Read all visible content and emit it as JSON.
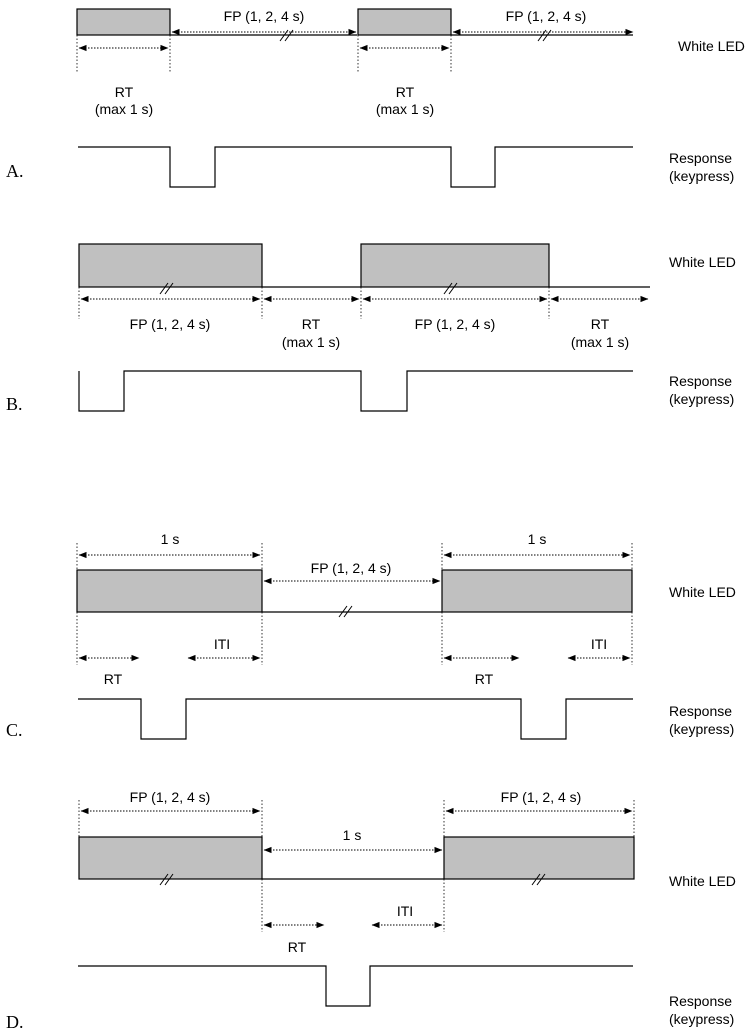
{
  "led_label": "White LED",
  "response_label_line1": "Response",
  "response_label_line2": "(keypress)",
  "fp_label": "FP (1, 2, 4 s)",
  "rt_label": "RT",
  "rt_max_label": "(max 1 s)",
  "one_s_label": "1 s",
  "iti_label": "ITI",
  "panels": [
    {
      "letter": "A."
    },
    {
      "letter": "B."
    },
    {
      "letter": "C."
    },
    {
      "letter": "D."
    }
  ]
}
